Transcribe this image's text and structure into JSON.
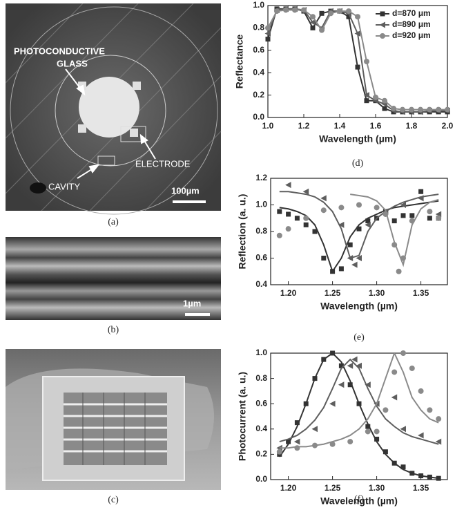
{
  "panel_labels": [
    "(a)",
    "(b)",
    "(c)",
    "(d)",
    "(e)",
    "(f)"
  ],
  "image_a": {
    "labels": [
      "PHOTOCONDUCTIVE",
      "GLASS",
      "ELECTRODE",
      "CAVITY"
    ],
    "scale_bar": "100µm"
  },
  "image_b": {
    "scale_bar": "1µm"
  },
  "chart_data": [
    {
      "type": "line",
      "xlabel": "Wavelength (µm)",
      "ylabel": "Reflectance",
      "legend": "upper right",
      "xlim": [
        1.0,
        2.0
      ],
      "ylim": [
        0,
        1.0
      ],
      "xticks": [
        {
          "value": 1,
          "label": "1.0"
        },
        1.2,
        1.4,
        1.6,
        1.8,
        {
          "value": 2,
          "label": "2.0"
        }
      ],
      "yticks": [
        {
          "value": 0,
          "label": "0.0"
        },
        0.2,
        0.4,
        0.6,
        0.8,
        {
          "value": 1,
          "label": "1.0"
        }
      ],
      "x": [
        1.0,
        1.05,
        1.1,
        1.15,
        1.2,
        1.25,
        1.3,
        1.35,
        1.4,
        1.45,
        1.5,
        1.55,
        1.6,
        1.65,
        1.7,
        1.75,
        1.8,
        1.85,
        1.9,
        1.95,
        2.0
      ],
      "series": [
        {
          "name": "d=870 μm",
          "color": "#333333",
          "marker": "square",
          "line": true,
          "values": [
            0.7,
            0.97,
            0.97,
            0.97,
            0.95,
            0.8,
            0.93,
            0.95,
            0.95,
            0.9,
            0.45,
            0.15,
            0.15,
            0.08,
            0.05,
            0.05,
            0.05,
            0.05,
            0.05,
            0.05,
            0.05
          ]
        },
        {
          "name": "d=890 μm",
          "color": "#5e5e5e",
          "marker": "triangle",
          "line": true,
          "values": [
            0.75,
            0.96,
            0.97,
            0.97,
            0.96,
            0.85,
            0.8,
            0.95,
            0.95,
            0.93,
            0.75,
            0.2,
            0.15,
            0.12,
            0.06,
            0.05,
            0.05,
            0.05,
            0.06,
            0.06,
            0.06
          ]
        },
        {
          "name": "d=920 μm",
          "color": "#8a8a8a",
          "marker": "circle",
          "line": true,
          "values": [
            0.8,
            0.95,
            0.96,
            0.96,
            0.96,
            0.9,
            0.78,
            0.93,
            0.95,
            0.95,
            0.9,
            0.5,
            0.18,
            0.15,
            0.08,
            0.07,
            0.07,
            0.07,
            0.07,
            0.07,
            0.07
          ]
        }
      ]
    },
    {
      "type": "scatter",
      "xlabel": "Wavelength (µm)",
      "ylabel": "Reflection (a. u.)",
      "xlim": [
        1.18,
        1.38
      ],
      "ylim": [
        0.4,
        1.2
      ],
      "xticks": [
        {
          "value": 1.2,
          "label": "1.20"
        },
        1.25,
        {
          "value": 1.3,
          "label": "1.30"
        },
        1.35
      ],
      "yticks": [
        0.4,
        0.6,
        0.8,
        {
          "value": 1,
          "label": "1.0"
        },
        1.2
      ],
      "series": [
        {
          "color": "#333333",
          "marker": "square",
          "x": [
            1.19,
            1.2,
            1.21,
            1.22,
            1.23,
            1.24,
            1.25,
            1.26,
            1.27,
            1.28,
            1.29,
            1.3,
            1.31,
            1.32,
            1.33,
            1.34,
            1.35,
            1.36,
            1.37
          ],
          "values": [
            0.95,
            0.93,
            0.9,
            0.85,
            0.8,
            0.6,
            0.5,
            0.52,
            0.7,
            0.82,
            0.88,
            0.9,
            0.95,
            0.88,
            0.92,
            0.92,
            1.1,
            0.9,
            0.9
          ]
        },
        {
          "color": "#333333",
          "line": true,
          "x": [
            1.19,
            1.2,
            1.21,
            1.22,
            1.23,
            1.24,
            1.25,
            1.26,
            1.27,
            1.28,
            1.29,
            1.3,
            1.31,
            1.32,
            1.33,
            1.34,
            1.35,
            1.36,
            1.37
          ],
          "values": [
            0.98,
            0.97,
            0.95,
            0.92,
            0.85,
            0.7,
            0.5,
            0.6,
            0.76,
            0.85,
            0.9,
            0.93,
            0.96,
            0.98,
            0.99,
            1.0,
            1.01,
            1.02,
            1.03
          ]
        },
        {
          "color": "#5e5e5e",
          "marker": "triangle",
          "x": [
            1.2,
            1.22,
            1.24,
            1.26,
            1.27,
            1.275,
            1.28,
            1.29,
            1.31,
            1.33,
            1.35,
            1.37
          ],
          "values": [
            1.15,
            1.1,
            1.05,
            0.85,
            0.6,
            0.55,
            0.6,
            0.85,
            0.95,
            1.0,
            1.05,
            0.93
          ]
        },
        {
          "color": "#5e5e5e",
          "line": true,
          "x": [
            1.19,
            1.2,
            1.21,
            1.22,
            1.23,
            1.24,
            1.25,
            1.26,
            1.27,
            1.28,
            1.29,
            1.3,
            1.31,
            1.32,
            1.33,
            1.34,
            1.35,
            1.36,
            1.37
          ],
          "values": [
            1.1,
            1.1,
            1.09,
            1.08,
            1.06,
            1.02,
            0.95,
            0.82,
            0.6,
            0.62,
            0.8,
            0.9,
            0.95,
            0.99,
            1.02,
            1.04,
            1.06,
            1.07,
            1.08
          ]
        },
        {
          "color": "#8a8a8a",
          "marker": "circle",
          "x": [
            1.19,
            1.2,
            1.22,
            1.24,
            1.26,
            1.28,
            1.3,
            1.31,
            1.32,
            1.325,
            1.33,
            1.34,
            1.36,
            1.37
          ],
          "values": [
            0.77,
            0.82,
            0.9,
            0.96,
            0.98,
            1.0,
            0.98,
            0.93,
            0.7,
            0.5,
            0.6,
            0.88,
            0.95,
            0.9
          ]
        },
        {
          "color": "#8a8a8a",
          "line": true,
          "x": [
            1.27,
            1.28,
            1.29,
            1.3,
            1.31,
            1.32,
            1.33,
            1.34,
            1.35,
            1.36,
            1.37
          ],
          "values": [
            1.08,
            1.07,
            1.06,
            1.03,
            0.96,
            0.72,
            0.55,
            0.85,
            0.97,
            1.02,
            1.04
          ]
        }
      ]
    },
    {
      "type": "scatter",
      "xlabel": "Wavelength (µm)",
      "ylabel": "Photocurrent (a. u.)",
      "xlim": [
        1.18,
        1.38
      ],
      "ylim": [
        0,
        1.0
      ],
      "xticks": [
        {
          "value": 1.2,
          "label": "1.20"
        },
        1.25,
        {
          "value": 1.3,
          "label": "1.30"
        },
        1.35
      ],
      "yticks": [
        {
          "value": 0,
          "label": "0.0"
        },
        0.2,
        0.4,
        0.6,
        0.8,
        {
          "value": 1,
          "label": "1.0"
        }
      ],
      "series": [
        {
          "color": "#333333",
          "marker": "square",
          "x": [
            1.19,
            1.2,
            1.21,
            1.22,
            1.23,
            1.24,
            1.25,
            1.26,
            1.27,
            1.28,
            1.29,
            1.3,
            1.31,
            1.32,
            1.33,
            1.34,
            1.35,
            1.36,
            1.37
          ],
          "values": [
            0.2,
            0.3,
            0.45,
            0.6,
            0.8,
            0.95,
            1.0,
            0.9,
            0.75,
            0.6,
            0.42,
            0.32,
            0.22,
            0.13,
            0.1,
            0.05,
            0.03,
            0.02,
            0.01
          ]
        },
        {
          "color": "#333333",
          "line": true,
          "x": [
            1.19,
            1.2,
            1.21,
            1.22,
            1.23,
            1.24,
            1.25,
            1.26,
            1.27,
            1.28,
            1.29,
            1.3,
            1.31,
            1.32,
            1.33,
            1.34,
            1.35,
            1.36,
            1.37
          ],
          "values": [
            0.18,
            0.28,
            0.42,
            0.6,
            0.8,
            0.95,
            1.0,
            0.93,
            0.78,
            0.6,
            0.44,
            0.3,
            0.2,
            0.13,
            0.08,
            0.05,
            0.03,
            0.02,
            0.01
          ]
        },
        {
          "color": "#5e5e5e",
          "marker": "triangle",
          "x": [
            1.19,
            1.21,
            1.23,
            1.25,
            1.26,
            1.27,
            1.275,
            1.28,
            1.29,
            1.3,
            1.32,
            1.33,
            1.35,
            1.37
          ],
          "values": [
            0.25,
            0.3,
            0.4,
            0.6,
            0.75,
            0.9,
            0.95,
            0.9,
            0.75,
            0.6,
            0.65,
            0.4,
            0.35,
            0.3
          ]
        },
        {
          "color": "#5e5e5e",
          "line": true,
          "x": [
            1.19,
            1.2,
            1.21,
            1.22,
            1.23,
            1.24,
            1.25,
            1.26,
            1.27,
            1.28,
            1.29,
            1.3,
            1.31,
            1.32,
            1.33,
            1.34,
            1.35,
            1.36,
            1.37
          ],
          "values": [
            0.3,
            0.32,
            0.35,
            0.4,
            0.47,
            0.57,
            0.72,
            0.88,
            0.95,
            0.88,
            0.72,
            0.58,
            0.48,
            0.42,
            0.37,
            0.34,
            0.32,
            0.3,
            0.28
          ]
        },
        {
          "color": "#8a8a8a",
          "marker": "circle",
          "x": [
            1.19,
            1.21,
            1.23,
            1.25,
            1.27,
            1.29,
            1.3,
            1.31,
            1.32,
            1.33,
            1.34,
            1.35,
            1.36,
            1.37
          ],
          "values": [
            0.22,
            0.25,
            0.27,
            0.28,
            0.3,
            0.38,
            0.38,
            0.55,
            0.85,
            1.0,
            0.88,
            0.7,
            0.55,
            0.48
          ]
        },
        {
          "color": "#8a8a8a",
          "line": true,
          "x": [
            1.19,
            1.2,
            1.21,
            1.22,
            1.23,
            1.24,
            1.25,
            1.26,
            1.27,
            1.28,
            1.29,
            1.3,
            1.31,
            1.32,
            1.33,
            1.34,
            1.35,
            1.36,
            1.37
          ],
          "values": [
            0.25,
            0.25,
            0.26,
            0.26,
            0.27,
            0.28,
            0.3,
            0.32,
            0.35,
            0.4,
            0.48,
            0.6,
            0.8,
            1.0,
            0.85,
            0.65,
            0.55,
            0.48,
            0.45
          ]
        }
      ]
    }
  ]
}
